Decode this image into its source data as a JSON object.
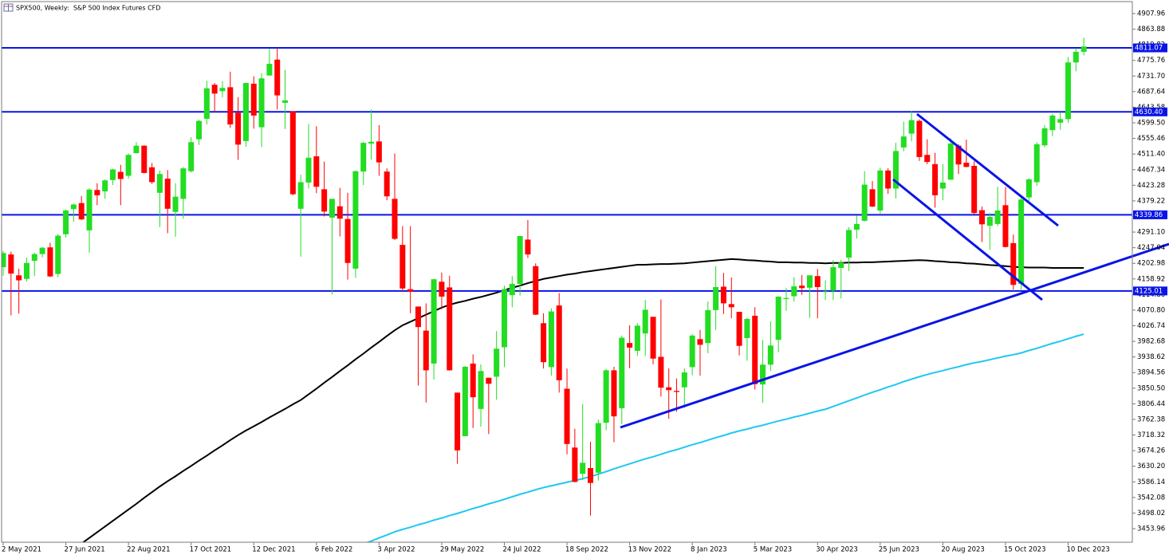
{
  "chart_data": {
    "type": "candlestick",
    "title": "SPX500, Weekly:  S&P 500 Index Futures CFD",
    "categories": [
      "2 May 2021",
      null,
      null,
      null,
      null,
      null,
      null,
      null,
      "27 Jun 2021",
      null,
      null,
      null,
      null,
      null,
      null,
      null,
      "22 Aug 2021",
      null,
      null,
      null,
      null,
      null,
      null,
      null,
      "17 Oct 2021",
      null,
      null,
      null,
      null,
      null,
      null,
      null,
      "12 Dec 2021",
      null,
      null,
      null,
      null,
      null,
      null,
      null,
      "6 Feb 2022",
      null,
      null,
      null,
      null,
      null,
      null,
      null,
      "3 Apr 2022",
      null,
      null,
      null,
      null,
      null,
      null,
      null,
      "29 May 2022",
      null,
      null,
      null,
      null,
      null,
      null,
      null,
      "24 Jul 2022",
      null,
      null,
      null,
      null,
      null,
      null,
      null,
      "18 Sep 2022",
      null,
      null,
      null,
      null,
      null,
      null,
      null,
      "13 Nov 2022",
      null,
      null,
      null,
      null,
      null,
      null,
      null,
      "8 Jan 2023",
      null,
      null,
      null,
      null,
      null,
      null,
      null,
      "5 Mar 2023",
      null,
      null,
      null,
      null,
      null,
      null,
      null,
      "30 Apr 2023",
      null,
      null,
      null,
      null,
      null,
      null,
      null,
      "25 Jun 2023",
      null,
      null,
      null,
      null,
      null,
      null,
      null,
      "20 Aug 2023",
      null,
      null,
      null,
      null,
      null,
      null,
      null,
      "15 Oct 2023",
      null,
      null,
      null,
      null,
      null,
      null,
      null,
      "10 Dec 2023",
      null,
      null
    ],
    "open": [
      4192,
      4228,
      4169,
      4159,
      4210,
      4229,
      4248,
      4173,
      4285,
      4356,
      4373,
      4296,
      4410,
      4406,
      4438,
      4461,
      4450,
      4514,
      4535,
      4474,
      4402,
      4442,
      4348,
      4385,
      4463,
      4553,
      4611,
      4707,
      4689,
      4700,
      4628,
      4548,
      4710,
      4587,
      4733,
      4778,
      4656,
      4632,
      4357,
      4431,
      4505,
      4412,
      4332,
      4364,
      4328,
      4188,
      4462,
      4541,
      4547,
      4462,
      4385,
      4255,
      4130,
      4081,
      4013,
      3920,
      4151,
      4135,
      3838,
      3715,
      3920,
      3792,
      3880,
      3883,
      3966,
      4113,
      4145,
      4270,
      4195,
      4034,
      3910,
      4084,
      3849,
      3683,
      3609,
      3625,
      3612,
      3753,
      3901,
      3794,
      3978,
      3956,
      4005,
      4052,
      3939,
      3853,
      3843,
      3853,
      3910,
      3989,
      3978,
      4071,
      4137,
      4088,
      4066,
      3992,
      4055,
      3861,
      3917,
      3987,
      4102,
      4110,
      4140,
      4134,
      4167,
      4124,
      4126,
      4190,
      4219,
      4298,
      4323,
      4412,
      4352,
      4465,
      4414,
      4530,
      4569,
      4605,
      4509,
      4483,
      4414,
      4439,
      4535,
      4487,
      4478,
      4353,
      4309,
      4314,
      4367,
      4260,
      4145,
      4389,
      4432,
      4536,
      4579,
      4600,
      4610,
      4770,
      4800
    ],
    "high": [
      4238,
      4236,
      4188,
      4219,
      4233,
      4249,
      4261,
      4286,
      4356,
      4372,
      4393,
      4415,
      4429,
      4440,
      4470,
      4481,
      4513,
      4545,
      4536,
      4486,
      4465,
      4466,
      4429,
      4475,
      4559,
      4608,
      4718,
      4712,
      4717,
      4744,
      4672,
      4713,
      4731,
      4740,
      4808,
      4812,
      4749,
      4632,
      4453,
      4596,
      4590,
      4490,
      4385,
      4416,
      4402,
      4465,
      4546,
      4637,
      4593,
      4471,
      4513,
      4308,
      4308,
      4081,
      4090,
      4159,
      4177,
      4168,
      3838,
      3913,
      3946,
      3918,
      3880,
      4012,
      4140,
      4167,
      4280,
      4325,
      4203,
      4062,
      4076,
      4119,
      3906,
      3736,
      3806,
      3699,
      3762,
      3905,
      3911,
      3999,
      4028,
      4034,
      4100,
      4052,
      4101,
      3906,
      3878,
      3906,
      4003,
      4015,
      4095,
      4195,
      4176,
      4163,
      4066,
      4049,
      4079,
      3987,
      4039,
      4110,
      4133,
      4164,
      4170,
      4170,
      4187,
      4155,
      4212,
      4213,
      4305,
      4337,
      4463,
      4435,
      4473,
      4471,
      4543,
      4603,
      4632,
      4609,
      4553,
      4515,
      4483,
      4556,
      4539,
      4552,
      4491,
      4363,
      4345,
      4419,
      4418,
      4284,
      4391,
      4443,
      4545,
      4593,
      4625,
      4630,
      4785,
      4810,
      4840
    ],
    "low": [
      4168,
      4056,
      4061,
      4152,
      4167,
      4220,
      4164,
      4164,
      4276,
      4321,
      4325,
      4233,
      4367,
      4385,
      4424,
      4367,
      4442,
      4513,
      4457,
      4427,
      4305,
      4288,
      4278,
      4329,
      4459,
      4537,
      4595,
      4630,
      4672,
      4585,
      4495,
      4532,
      4583,
      4531,
      4733,
      4637,
      4582,
      4395,
      4222,
      4414,
      4401,
      4335,
      4115,
      4279,
      4157,
      4162,
      4424,
      4496,
      4450,
      4381,
      4269,
      4124,
      4062,
      3858,
      3810,
      3875,
      4073,
      3900,
      3637,
      3715,
      3738,
      3742,
      3721,
      3818,
      3910,
      4079,
      4112,
      4218,
      4057,
      3906,
      3886,
      3838,
      3664,
      3584,
      3591,
      3491,
      3590,
      3732,
      3698,
      3749,
      3907,
      3942,
      3941,
      3918,
      3827,
      3764,
      3784,
      3795,
      3887,
      3886,
      3949,
      4015,
      4060,
      4048,
      3943,
      3928,
      3847,
      3809,
      3899,
      3952,
      4069,
      4095,
      4114,
      4049,
      4048,
      4099,
      4099,
      4104,
      4181,
      4273,
      4321,
      4362,
      4344,
      4399,
      4386,
      4519,
      4547,
      4492,
      4483,
      4360,
      4381,
      4439,
      4455,
      4474,
      4341,
      4263,
      4241,
      4308,
      4248,
      4129,
      4129,
      4379,
      4421,
      4531,
      4562,
      4580,
      4600,
      4745,
      4790
    ],
    "close": [
      4232,
      4174,
      4155,
      4204,
      4229,
      4247,
      4166,
      4281,
      4352,
      4369,
      4327,
      4411,
      4395,
      4437,
      4468,
      4441,
      4509,
      4535,
      4458,
      4432,
      4455,
      4357,
      4391,
      4471,
      4545,
      4605,
      4697,
      4682,
      4698,
      4595,
      4538,
      4712,
      4620,
      4725,
      4766,
      4677,
      4663,
      4398,
      4432,
      4501,
      4419,
      4349,
      4385,
      4329,
      4204,
      4463,
      4543,
      4546,
      4488,
      4392,
      4272,
      4132,
      4123,
      4023,
      3901,
      4158,
      4109,
      3901,
      3675,
      3911,
      3825,
      3899,
      3863,
      3962,
      4130,
      4145,
      4280,
      4228,
      4058,
      3924,
      4067,
      3873,
      3693,
      3586,
      3640,
      3583,
      3752,
      3901,
      3771,
      3993,
      3965,
      4027,
      4072,
      3934,
      3852,
      3845,
      3840,
      3895,
      3999,
      3973,
      4071,
      4136,
      4090,
      4079,
      3970,
      4046,
      3862,
      3917,
      3971,
      4109,
      4105,
      4138,
      4133,
      4169,
      4136,
      4124,
      4192,
      4205,
      4297,
      4314,
      4425,
      4363,
      4465,
      4414,
      4520,
      4561,
      4607,
      4503,
      4489,
      4395,
      4431,
      4541,
      4482,
      4475,
      4345,
      4313,
      4334,
      4352,
      4249,
      4142,
      4383,
      4440,
      4539,
      4584,
      4620,
      4610,
      4770,
      4800,
      4815
    ],
    "up_color": "#22dd22",
    "down_color": "#ff0000",
    "ma_lines": [
      {
        "color": "#000000",
        "values": [
          null,
          null,
          null,
          null,
          null,
          null,
          null,
          null,
          3380,
          3396,
          3412,
          3428,
          3444,
          3460,
          3476,
          3492,
          3508,
          3524,
          3541,
          3557,
          3573,
          3588,
          3602,
          3617,
          3631,
          3646,
          3660,
          3675,
          3689,
          3704,
          3718,
          3731,
          3743,
          3755,
          3768,
          3780,
          3792,
          3805,
          3817,
          3833,
          3849,
          3866,
          3882,
          3899,
          3915,
          3932,
          3948,
          3965,
          3981,
          3998,
          4014,
          4028,
          4038,
          4048,
          4058,
          4068,
          4078,
          4086,
          4092,
          4097,
          4103,
          4108,
          4114,
          4120,
          4127,
          4134,
          4140,
          4147,
          4153,
          4159,
          4163,
          4167,
          4171,
          4174,
          4178,
          4181,
          4184,
          4187,
          4190,
          4193,
          4196,
          4199,
          4199,
          4200,
          4201,
          4201,
          4202,
          4203,
          4205,
          4207,
          4209,
          4211,
          4213,
          4215,
          4214,
          4212,
          4211,
          4209,
          4208,
          4206,
          4206,
          4205,
          4205,
          4204,
          4204,
          4203,
          4204,
          4204,
          4205,
          4205,
          4206,
          4206,
          4207,
          4208,
          4209,
          4210,
          4211,
          4212,
          4211,
          4209,
          4208,
          4206,
          4205,
          4203,
          4202,
          4200,
          4198,
          4197,
          4195,
          4193,
          4192,
          4191,
          4191,
          4191,
          4190,
          4190,
          4190,
          4190,
          4190
        ]
      },
      {
        "color": "#1ec8f0",
        "values": [
          null,
          null,
          null,
          null,
          null,
          null,
          null,
          null,
          null,
          null,
          null,
          null,
          null,
          null,
          null,
          null,
          null,
          null,
          null,
          null,
          null,
          null,
          null,
          null,
          null,
          null,
          null,
          null,
          null,
          null,
          null,
          null,
          null,
          null,
          null,
          null,
          null,
          null,
          null,
          null,
          null,
          null,
          null,
          3385,
          3394,
          3402,
          3411,
          3419,
          3428,
          3436,
          3445,
          3452,
          3458,
          3465,
          3471,
          3478,
          3484,
          3491,
          3497,
          3504,
          3511,
          3517,
          3524,
          3530,
          3537,
          3544,
          3551,
          3557,
          3564,
          3570,
          3575,
          3580,
          3585,
          3590,
          3595,
          3601,
          3608,
          3615,
          3623,
          3630,
          3637,
          3644,
          3651,
          3657,
          3664,
          3671,
          3677,
          3684,
          3691,
          3697,
          3704,
          3711,
          3717,
          3724,
          3730,
          3735,
          3741,
          3746,
          3752,
          3758,
          3763,
          3769,
          3774,
          3780,
          3786,
          3791,
          3799,
          3807,
          3815,
          3823,
          3831,
          3839,
          3846,
          3854,
          3861,
          3869,
          3876,
          3883,
          3889,
          3895,
          3900,
          3906,
          3911,
          3917,
          3922,
          3926,
          3931,
          3936,
          3941,
          3945,
          3950,
          3957,
          3963,
          3970,
          3977,
          3983,
          3990,
          3997,
          4003
        ]
      }
    ],
    "levels": [
      4811.07,
      {
        "value": 4630.4,
        "label": "4630.40"
      },
      4339.86,
      4125.01
    ],
    "level_color": "#0a14e6",
    "ylim": [
      3415.7,
      4941.7
    ],
    "yticks": [
      4907.96,
      4863.88,
      4819.82,
      4775.76,
      {
        "value": 4731.7,
        "label": "4731.70"
      },
      4687.64,
      4643.58,
      {
        "value": 4599.5,
        "label": "4599.50"
      },
      4555.46,
      {
        "value": 4511.4,
        "label": "4511.40"
      },
      4467.34,
      4423.28,
      4379.22,
      4335.16,
      {
        "value": 4291.1,
        "label": "4291.10"
      },
      4247.04,
      4202.98,
      4158.92,
      4114.86,
      {
        "value": 4070.8,
        "label": "4070.80"
      },
      4026.74,
      3982.68,
      3938.62,
      3894.56,
      {
        "value": 3850.5,
        "label": "3850.50"
      },
      3806.44,
      3762.38,
      3718.32,
      3674.26,
      {
        "value": 3630.2,
        "label": "3630.20"
      },
      3586.14,
      3542.08,
      3498.02,
      3453.96
    ]
  }
}
